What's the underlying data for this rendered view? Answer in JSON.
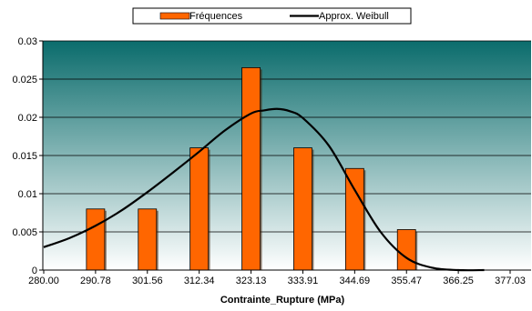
{
  "chart_data": {
    "type": "bar",
    "categories": [
      "280.00",
      "290.78",
      "301.56",
      "312.34",
      "323.13",
      "333.91",
      "344.69",
      "355.47",
      "366.25",
      "377.03"
    ],
    "series": [
      {
        "name": "Fréquences",
        "type": "bar",
        "color": "#ff6600",
        "values": [
          0,
          0.008,
          0.008,
          0.016,
          0.0265,
          0.016,
          0.0133,
          0.0053,
          0,
          0
        ]
      },
      {
        "name": "Approx. Weibull",
        "type": "line",
        "color": "#000000",
        "x": [
          280.0,
          285.39,
          290.78,
          296.17,
          301.56,
          306.95,
          312.34,
          317.74,
          323.13,
          325.82,
          328.52,
          331.21,
          333.91,
          339.3,
          344.69,
          350.08,
          355.47,
          360.86,
          366.25,
          371.64
        ],
        "values": [
          0.003,
          0.0042,
          0.0058,
          0.0078,
          0.0102,
          0.0128,
          0.0155,
          0.0183,
          0.0205,
          0.0209,
          0.0211,
          0.0208,
          0.0199,
          0.0163,
          0.0105,
          0.005,
          0.0016,
          0.0003,
          0.0,
          0.0
        ]
      }
    ],
    "yticks": [
      "0",
      "0.005",
      "0.01",
      "0.015",
      "0.02",
      "0.025",
      "0.03"
    ],
    "ylim": [
      0,
      0.03
    ],
    "xlim": [
      280.0,
      377.03
    ],
    "xlabel": "Contrainte_Rupture (MPa)",
    "ylabel": "",
    "title": "",
    "grid": true,
    "legend": "top-center",
    "colors": {
      "plot_top": "#0b6c6c",
      "plot_bottom": "#ffffff",
      "bar": "#ff6600",
      "line": "#000000"
    }
  }
}
